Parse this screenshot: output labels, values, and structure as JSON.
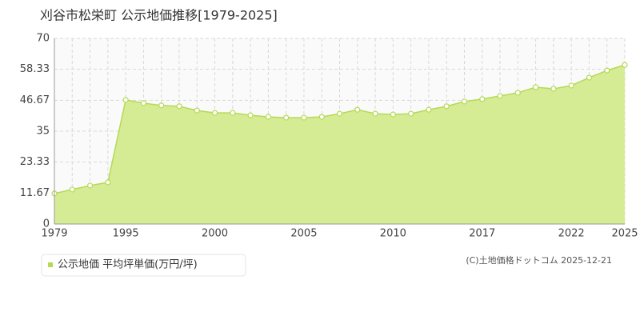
{
  "chart_data": {
    "type": "area",
    "title": "刈谷市松栄町 公示地価推移[1979-2025]",
    "categories": [
      "1979",
      null,
      null,
      null,
      "1995",
      null,
      null,
      null,
      null,
      "2000",
      null,
      null,
      null,
      null,
      "2005",
      null,
      null,
      null,
      null,
      "2010",
      null,
      null,
      null,
      null,
      "2017",
      null,
      null,
      null,
      null,
      "2022",
      null,
      null,
      "2025"
    ],
    "series": [
      {
        "name": "公示地価 平均坪単価(万円/坪)",
        "color": "#b5d955",
        "fill": "#d6ec94",
        "values": [
          11.5,
          13.0,
          14.5,
          15.7,
          46.8,
          45.6,
          44.7,
          44.4,
          42.8,
          41.9,
          41.9,
          41.0,
          40.4,
          40.1,
          40.1,
          40.4,
          41.6,
          43.1,
          41.6,
          41.3,
          41.6,
          43.1,
          44.4,
          46.2,
          47.1,
          48.3,
          49.5,
          51.6,
          51.0,
          52.2,
          55.2,
          57.9,
          60.0
        ]
      }
    ],
    "ylim": [
      0,
      70
    ],
    "yticks": [
      0,
      11.67,
      23.33,
      35,
      46.67,
      58.33,
      70
    ],
    "grid": true,
    "copyright": "(C)土地価格ドットコム 2025-12-21"
  }
}
